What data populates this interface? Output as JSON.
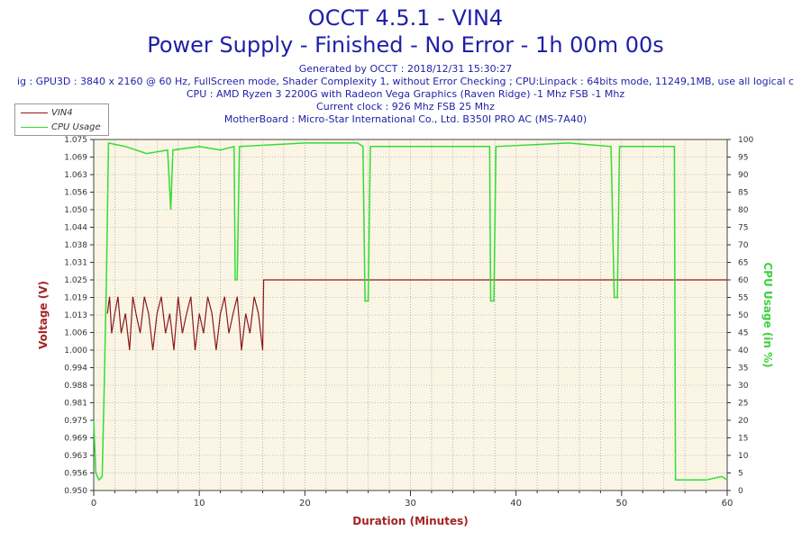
{
  "header": {
    "title_line1": "OCCT 4.5.1 - VIN4",
    "title_line2": "Power Supply - Finished - No Error - 1h 00m 00s",
    "generated": "Generated by OCCT : 2018/12/31 15:30:27",
    "config": "ig : GPU3D : 3840 x 2160 @ 60 Hz, FullScreen mode, Shader Complexity 1, without Error Checking ; CPU:Linpack : 64bits mode, 11249,1MB, use all logical c",
    "cpu": "CPU : AMD Ryzen 3 2200G with Radeon Vega Graphics (Raven Ridge) -1 Mhz FSB -1 Mhz",
    "clock": "Current clock : 926 Mhz FSB 25 Mhz",
    "motherboard": "MotherBoard : Micro-Star International Co., Ltd. B350I PRO AC (MS-7A40)"
  },
  "legend": {
    "items": [
      {
        "label": "VIN4",
        "color": "#8b1a1a"
      },
      {
        "label": "CPU Usage",
        "color": "#33dd33"
      }
    ]
  },
  "colors": {
    "plot_bg": "#fbf5e6",
    "voltage": "#8b1a1a",
    "cpu": "#33dd33",
    "grid": "#888888",
    "axis_title_left": "#a32424",
    "axis_title_right": "#3fd03f"
  },
  "chart_data": {
    "type": "line",
    "xlabel": "Duration (Minutes)",
    "ylabel": "Voltage (V)",
    "y2label": "CPU Usage (in %)",
    "xlim": [
      0,
      60
    ],
    "ylim": [
      0.95,
      1.075
    ],
    "y2lim": [
      0,
      100
    ],
    "x_ticks": [
      0,
      10,
      20,
      30,
      40,
      50,
      60
    ],
    "y_ticks": [
      "0.950",
      "0.956",
      "0.963",
      "0.969",
      "0.975",
      "0.981",
      "0.988",
      "0.994",
      "1.000",
      "1.006",
      "1.013",
      "1.019",
      "1.025",
      "1.031",
      "1.038",
      "1.044",
      "1.050",
      "1.056",
      "1.063",
      "1.069",
      "1.075"
    ],
    "y2_ticks": [
      0,
      5,
      10,
      15,
      20,
      25,
      30,
      35,
      40,
      45,
      50,
      55,
      60,
      65,
      70,
      75,
      80,
      85,
      90,
      95,
      100
    ],
    "grid": true,
    "series": [
      {
        "name": "VIN4",
        "axis": "left",
        "points": [
          [
            1.3,
            1.013
          ],
          [
            1.5,
            1.019
          ],
          [
            1.7,
            1.006
          ],
          [
            2.0,
            1.013
          ],
          [
            2.3,
            1.019
          ],
          [
            2.6,
            1.006
          ],
          [
            3.0,
            1.013
          ],
          [
            3.4,
            1.0
          ],
          [
            3.7,
            1.019
          ],
          [
            4.0,
            1.013
          ],
          [
            4.4,
            1.006
          ],
          [
            4.8,
            1.019
          ],
          [
            5.2,
            1.013
          ],
          [
            5.6,
            1.0
          ],
          [
            6.0,
            1.013
          ],
          [
            6.4,
            1.019
          ],
          [
            6.8,
            1.006
          ],
          [
            7.2,
            1.013
          ],
          [
            7.6,
            1.0
          ],
          [
            8.0,
            1.019
          ],
          [
            8.4,
            1.006
          ],
          [
            8.8,
            1.013
          ],
          [
            9.2,
            1.019
          ],
          [
            9.6,
            1.0
          ],
          [
            10.0,
            1.013
          ],
          [
            10.4,
            1.006
          ],
          [
            10.8,
            1.019
          ],
          [
            11.2,
            1.013
          ],
          [
            11.6,
            1.0
          ],
          [
            12.0,
            1.013
          ],
          [
            12.4,
            1.019
          ],
          [
            12.8,
            1.006
          ],
          [
            13.2,
            1.013
          ],
          [
            13.6,
            1.019
          ],
          [
            14.0,
            1.0
          ],
          [
            14.4,
            1.013
          ],
          [
            14.8,
            1.006
          ],
          [
            15.2,
            1.019
          ],
          [
            15.6,
            1.013
          ],
          [
            16.0,
            1.0
          ],
          [
            16.1,
            1.025
          ],
          [
            60.0,
            1.025
          ]
        ]
      },
      {
        "name": "CPU Usage",
        "axis": "right",
        "points": [
          [
            0,
            20
          ],
          [
            0.2,
            5
          ],
          [
            0.5,
            3
          ],
          [
            0.8,
            4
          ],
          [
            1.0,
            30
          ],
          [
            1.2,
            60
          ],
          [
            1.4,
            99
          ],
          [
            3,
            98
          ],
          [
            5,
            96
          ],
          [
            7,
            97
          ],
          [
            7.3,
            80
          ],
          [
            7.5,
            97
          ],
          [
            10,
            98
          ],
          [
            12,
            97
          ],
          [
            13.3,
            98
          ],
          [
            13.4,
            60
          ],
          [
            13.6,
            60
          ],
          [
            13.8,
            98
          ],
          [
            20,
            99
          ],
          [
            25,
            99
          ],
          [
            25.5,
            98
          ],
          [
            25.7,
            54
          ],
          [
            26.0,
            54
          ],
          [
            26.2,
            98
          ],
          [
            37,
            98
          ],
          [
            37.5,
            98
          ],
          [
            37.6,
            54
          ],
          [
            37.9,
            54
          ],
          [
            38.1,
            98
          ],
          [
            45,
            99
          ],
          [
            49,
            98
          ],
          [
            49.3,
            55
          ],
          [
            49.6,
            55
          ],
          [
            49.8,
            98
          ],
          [
            55,
            98
          ],
          [
            55.1,
            3
          ],
          [
            58,
            3
          ],
          [
            59.5,
            4
          ],
          [
            60,
            3
          ]
        ]
      }
    ]
  }
}
